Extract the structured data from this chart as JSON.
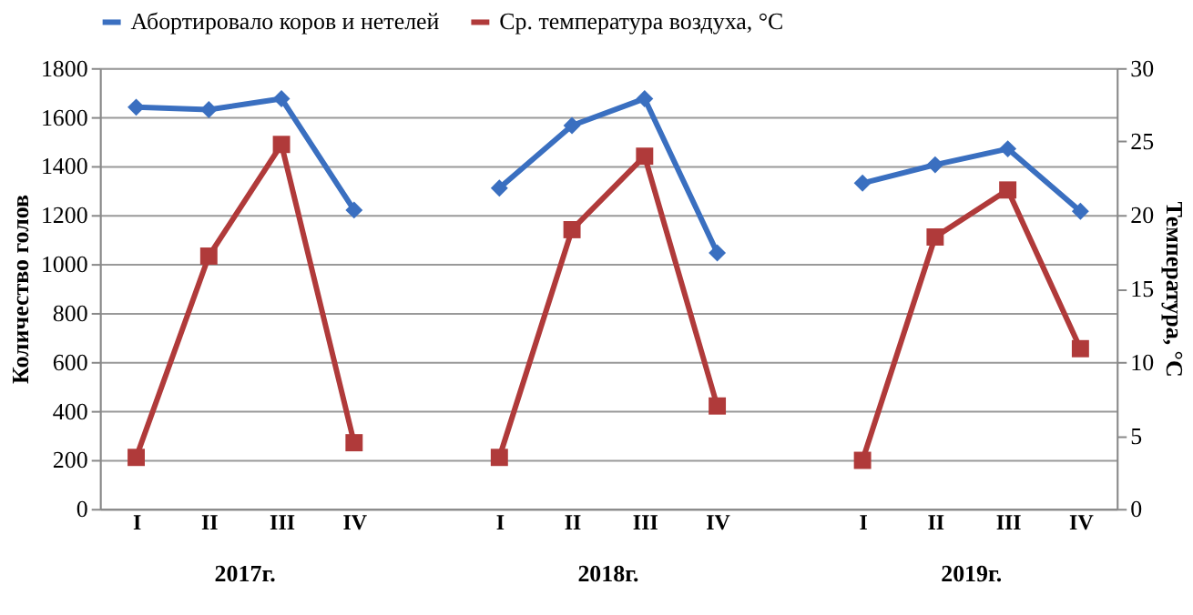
{
  "chart_data": {
    "type": "line",
    "categories": [
      "I",
      "II",
      "III",
      "IV",
      null,
      "I",
      "II",
      "III",
      "IV",
      null,
      "I",
      "II",
      "III",
      "IV"
    ],
    "series": [
      {
        "name": "Абортировало коров и нетелей",
        "color": "#3a6fc0",
        "marker": "diamond",
        "values": [
          1640,
          1630,
          1675,
          1220,
          null,
          1310,
          1565,
          1675,
          1045,
          null,
          1330,
          1405,
          1470,
          1215
        ]
      },
      {
        "name": "Ср. температура воздуха, °С",
        "color": "#b03a3a",
        "marker": "square",
        "axis": "y2",
        "values": [
          3.5,
          17.2,
          24.8,
          4.5,
          null,
          3.5,
          19,
          24,
          7,
          null,
          3.3,
          18.5,
          21.7,
          10.9
        ]
      }
    ],
    "ylabel": "Количество голов",
    "y2label": "Температура, °С",
    "ylim": [
      0,
      1800
    ],
    "yticks": [
      0,
      200,
      400,
      600,
      800,
      1000,
      1200,
      1400,
      1600,
      1800
    ],
    "y2lim": [
      0,
      30
    ],
    "y2ticks": [
      0,
      5,
      10,
      15,
      20,
      25,
      30
    ],
    "annotations": [
      "2017г.",
      "2018г.",
      "2019г."
    ],
    "grid": "y",
    "legend": "top",
    "line_style": "solid"
  }
}
